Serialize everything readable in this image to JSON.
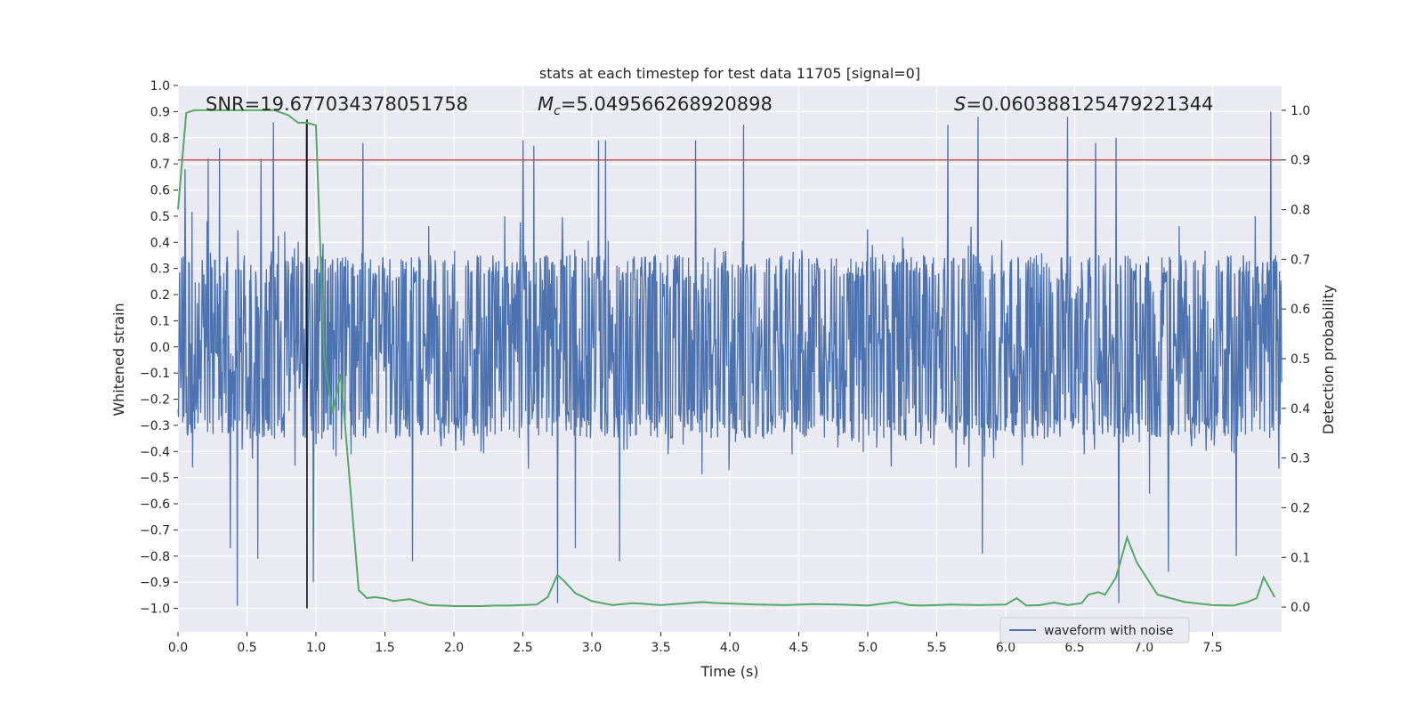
{
  "chart_data": {
    "type": "line",
    "title": "stats at each timestep for test data 11705 [signal=0]",
    "xlabel": "Time (s)",
    "ylabel_left": "Whitened strain",
    "ylabel_right": "Detection probability",
    "xlim": [
      0.0,
      8.0
    ],
    "ylim_left": [
      -1.09,
      1.0
    ],
    "ylim_right": [
      -0.05,
      1.05
    ],
    "xticks": [
      0.0,
      0.5,
      1.0,
      1.5,
      2.0,
      2.5,
      3.0,
      3.5,
      4.0,
      4.5,
      5.0,
      5.5,
      6.0,
      6.5,
      7.0,
      7.5
    ],
    "xtick_labels": [
      "0.0",
      "0.5",
      "1.0",
      "1.5",
      "2.0",
      "2.5",
      "3.0",
      "3.5",
      "4.0",
      "4.5",
      "5.0",
      "5.5",
      "6.0",
      "6.5",
      "7.0",
      "7.5"
    ],
    "yticks_left": [
      -1.0,
      -0.9,
      -0.8,
      -0.7,
      -0.6,
      -0.5,
      -0.4,
      -0.3,
      -0.2,
      -0.1,
      0.0,
      0.1,
      0.2,
      0.3,
      0.4,
      0.5,
      0.6,
      0.7,
      0.8,
      0.9,
      1.0
    ],
    "ytick_labels_left": [
      "−1.0",
      "−0.9",
      "−0.8",
      "−0.7",
      "−0.6",
      "−0.5",
      "−0.4",
      "−0.3",
      "−0.2",
      "−0.1",
      "0.0",
      "0.1",
      "0.2",
      "0.3",
      "0.4",
      "0.5",
      "0.6",
      "0.7",
      "0.8",
      "0.9",
      "1.0"
    ],
    "yticks_right": [
      0.0,
      0.1,
      0.2,
      0.3,
      0.4,
      0.5,
      0.6,
      0.7,
      0.8,
      0.9,
      1.0
    ],
    "ytick_labels_right": [
      "0.0",
      "0.1",
      "0.2",
      "0.3",
      "0.4",
      "0.5",
      "0.6",
      "0.7",
      "0.8",
      "0.9",
      "1.0"
    ],
    "grid": true,
    "legend": {
      "position": "lower-right",
      "entries": [
        "waveform with noise"
      ]
    },
    "annotations": {
      "snr": "SNR=19.677034378051758",
      "mc_symbol": "M",
      "mc_sub": "c",
      "mc_value": "=5.049566268920898",
      "s_symbol": "S",
      "s_value": "=0.0603881254792213​44"
    },
    "threshold": {
      "value_right": 0.9,
      "color": "#c44e52"
    },
    "vline": {
      "x": 0.935,
      "y_from": -1.0,
      "y_to": 0.87,
      "color": "#000000"
    },
    "waveform": {
      "name": "waveform with noise",
      "color": "#4c72b0",
      "sample_count": 2048,
      "core_amplitude": 0.32,
      "peaks": [
        {
          "x": 0.05,
          "y": 0.68
        },
        {
          "x": 0.22,
          "y": 0.72
        },
        {
          "x": 0.3,
          "y": 0.76
        },
        {
          "x": 0.6,
          "y": 0.72
        },
        {
          "x": 0.69,
          "y": 0.86
        },
        {
          "x": 0.93,
          "y": 0.86
        },
        {
          "x": 1.34,
          "y": 0.78
        },
        {
          "x": 2.5,
          "y": 0.79
        },
        {
          "x": 2.58,
          "y": 0.77
        },
        {
          "x": 2.75,
          "y": 0.78
        },
        {
          "x": 3.05,
          "y": 0.79
        },
        {
          "x": 3.1,
          "y": 0.79
        },
        {
          "x": 3.75,
          "y": 0.79
        },
        {
          "x": 4.1,
          "y": 0.85
        },
        {
          "x": 5.58,
          "y": 0.85
        },
        {
          "x": 5.8,
          "y": 0.88
        },
        {
          "x": 6.45,
          "y": 0.88
        },
        {
          "x": 6.65,
          "y": 0.78
        },
        {
          "x": 6.8,
          "y": 0.8
        },
        {
          "x": 7.92,
          "y": 0.9
        },
        {
          "x": 0.43,
          "y": -0.99
        },
        {
          "x": 0.38,
          "y": -0.77
        },
        {
          "x": 0.58,
          "y": -0.81
        },
        {
          "x": 0.98,
          "y": -0.9
        },
        {
          "x": 2.75,
          "y": -0.98
        },
        {
          "x": 3.2,
          "y": -0.82
        },
        {
          "x": 5.83,
          "y": -0.79
        },
        {
          "x": 6.82,
          "y": -0.98
        },
        {
          "x": 7.18,
          "y": -0.86
        },
        {
          "x": 7.67,
          "y": -0.8
        },
        {
          "x": 1.7,
          "y": -0.82
        },
        {
          "x": 2.88,
          "y": -0.77
        }
      ]
    },
    "series": [
      {
        "name": "detection probability",
        "axis": "right",
        "color": "#55a868",
        "x": [
          0.0,
          0.06,
          0.12,
          0.5,
          0.7,
          0.8,
          0.87,
          0.93,
          1.0,
          1.06,
          1.12,
          1.18,
          1.24,
          1.31,
          1.37,
          1.43,
          1.5,
          1.56,
          1.68,
          1.82,
          2.0,
          2.2,
          2.3,
          2.4,
          2.6,
          2.68,
          2.75,
          2.8,
          2.88,
          3.0,
          3.15,
          3.3,
          3.5,
          3.6,
          3.7,
          3.8,
          3.9,
          4.0,
          4.2,
          4.4,
          4.6,
          4.8,
          5.0,
          5.2,
          5.3,
          5.4,
          5.6,
          5.8,
          6.0,
          6.08,
          6.15,
          6.25,
          6.35,
          6.45,
          6.55,
          6.6,
          6.67,
          6.72,
          6.8,
          6.88,
          6.95,
          7.1,
          7.3,
          7.5,
          7.65,
          7.75,
          7.82,
          7.87,
          7.95
        ],
        "y": [
          0.8,
          0.995,
          1.0,
          1.0,
          1.0,
          0.99,
          0.975,
          0.975,
          0.97,
          0.5,
          0.39,
          0.47,
          0.27,
          0.034,
          0.018,
          0.02,
          0.017,
          0.012,
          0.016,
          0.004,
          0.002,
          0.002,
          0.003,
          0.003,
          0.005,
          0.02,
          0.065,
          0.052,
          0.028,
          0.012,
          0.004,
          0.008,
          0.004,
          0.006,
          0.008,
          0.01,
          0.008,
          0.007,
          0.005,
          0.004,
          0.006,
          0.005,
          0.003,
          0.01,
          0.004,
          0.003,
          0.005,
          0.004,
          0.005,
          0.018,
          0.003,
          0.004,
          0.009,
          0.004,
          0.008,
          0.025,
          0.03,
          0.025,
          0.06,
          0.14,
          0.09,
          0.025,
          0.01,
          0.004,
          0.003,
          0.01,
          0.018,
          0.06,
          0.02
        ]
      }
    ]
  }
}
